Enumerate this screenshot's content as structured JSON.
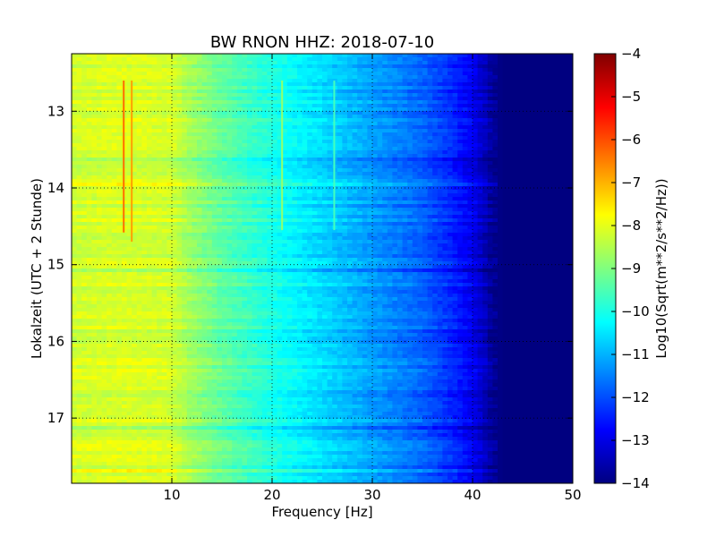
{
  "chart_data": {
    "type": "heatmap",
    "title": "BW RNON HHZ: 2018-07-10",
    "xlabel": "Frequency [Hz]",
    "ylabel": "Lokalzeit (UTC + 2 Stunde)",
    "xlim": [
      0,
      50
    ],
    "ylim": [
      17.85,
      12.25
    ],
    "x_ticks": [
      10,
      20,
      30,
      40,
      50
    ],
    "x_tick_labels": [
      "10",
      "20",
      "30",
      "40",
      "50"
    ],
    "y_ticks": [
      13,
      14,
      15,
      16,
      17
    ],
    "y_tick_labels": [
      "13",
      "14",
      "15",
      "16",
      "17"
    ],
    "grid": true,
    "colormap": "jet",
    "colorbar": {
      "label": "Log10(Sqrt(m**2/s**2/Hz))",
      "range": [
        -14,
        -4
      ],
      "ticks": [
        -4,
        -5,
        -6,
        -7,
        -8,
        -9,
        -10,
        -11,
        -12,
        -13,
        -14
      ],
      "tick_labels": [
        "−4",
        "−5",
        "−6",
        "−7",
        "−8",
        "−9",
        "−10",
        "−11",
        "−12",
        "−13",
        "−14"
      ]
    },
    "spectrum_profile": {
      "frequency_hz": [
        0,
        5,
        10,
        12,
        15,
        20,
        25,
        30,
        35,
        38,
        40,
        41,
        42,
        43,
        50
      ],
      "value": [
        -8.2,
        -8.1,
        -8.2,
        -8.7,
        -9.3,
        -10.0,
        -10.6,
        -11.2,
        -11.8,
        -12.4,
        -12.9,
        -13.3,
        -13.8,
        -14.0,
        -14.0
      ]
    },
    "spectral_lines": [
      {
        "frequency_hz": 5.2,
        "time_start": 12.6,
        "time_end": 14.58,
        "value": -6.3
      },
      {
        "frequency_hz": 6.0,
        "time_start": 12.6,
        "time_end": 14.7,
        "value": -6.8
      },
      {
        "frequency_hz": 21.0,
        "time_start": 12.6,
        "time_end": 14.55,
        "value": -8.8
      },
      {
        "frequency_hz": 26.2,
        "time_start": 12.6,
        "time_end": 14.55,
        "value": -9.6
      }
    ]
  }
}
